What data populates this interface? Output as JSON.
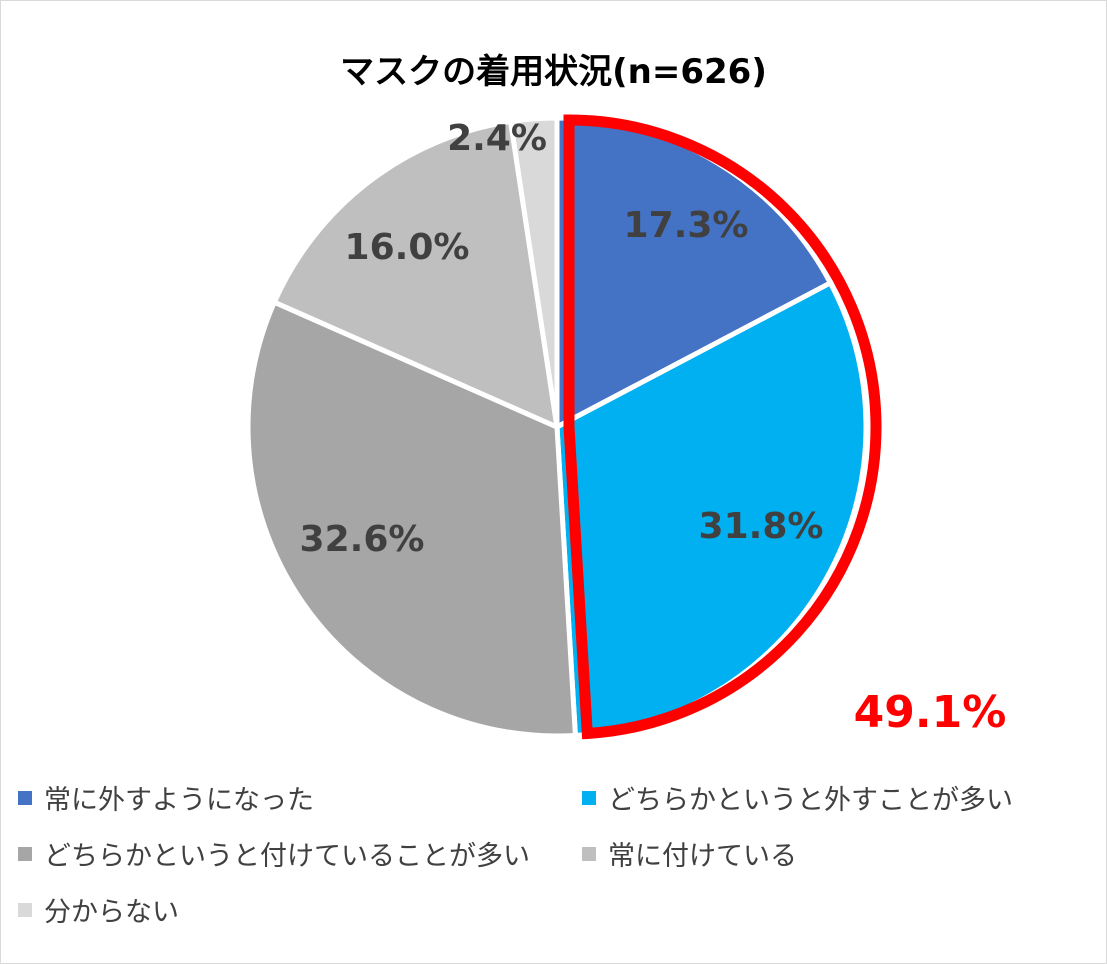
{
  "chart_data": {
    "type": "pie",
    "title": "マスクの着用状況(n=626)",
    "slices": [
      {
        "label": "常に外すようになった",
        "value": 17.3,
        "display": "17.3%",
        "color": "#4472c4"
      },
      {
        "label": "どちらかというと外すことが多い",
        "value": 31.8,
        "display": "31.8%",
        "color": "#00b0f0"
      },
      {
        "label": "どちらかというと付けていることが多い",
        "value": 32.6,
        "display": "32.6%",
        "color": "#a6a6a6"
      },
      {
        "label": "常に付けている",
        "value": 16.0,
        "display": "16.0%",
        "color": "#bfbfbf"
      },
      {
        "label": "分からない",
        "value": 2.4,
        "display": "2.4%",
        "color": "#d9d9d9"
      }
    ],
    "highlight": {
      "slices": [
        0,
        1
      ],
      "label": "49.1%",
      "color": "#ff0000"
    },
    "legend_position": "bottom"
  }
}
